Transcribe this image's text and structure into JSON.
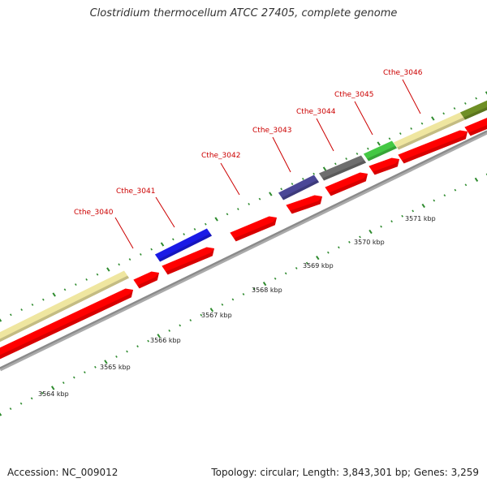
{
  "title": "Clostridium thermocellum ATCC 27405, complete genome",
  "footer": {
    "accession": "Accession: NC_009012",
    "summary": "Topology: circular; Length: 3,843,301 bp; Genes: 3,259"
  },
  "colors": {
    "cds": "#ff0000",
    "backbone": "#8a8a8a",
    "tick": "#2e8b2e",
    "label": "#cc0000",
    "pale_yellow": "#efe6a0",
    "blue": "#1a1ae6",
    "slate_blue": "#4b4797",
    "gray": "#6e6e6e",
    "green": "#44c844",
    "olive": "#6f8f25"
  },
  "kbp_labels": [
    "3564 kbp",
    "3565 kbp",
    "3566 kbp",
    "3567 kbp",
    "3568 kbp",
    "3569 kbp",
    "3570 kbp",
    "3571 kbp"
  ],
  "gene_labels": [
    "Cthe_3040",
    "Cthe_3041",
    "Cthe_3042",
    "Cthe_3043",
    "Cthe_3044",
    "Cthe_3045",
    "Cthe_3046"
  ]
}
